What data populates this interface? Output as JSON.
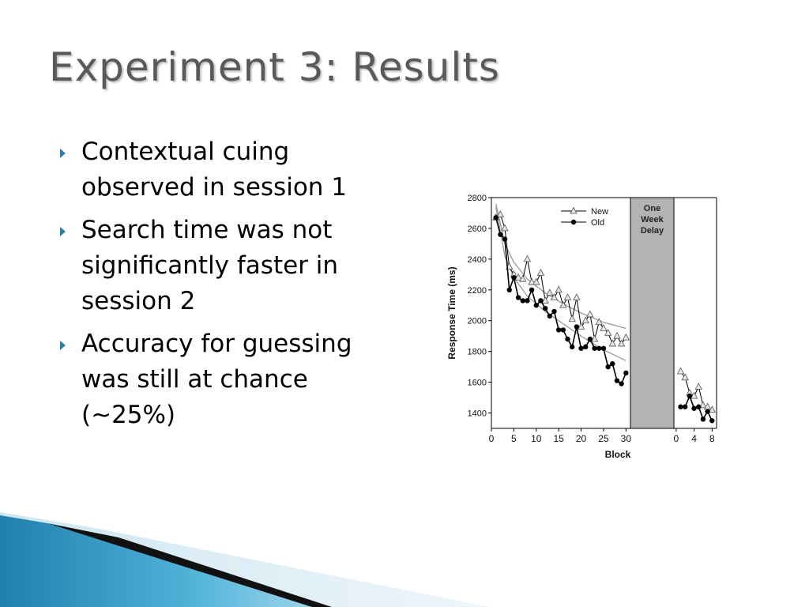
{
  "slide": {
    "title": "Experiment 3: Results",
    "bullets": [
      "Contextual cuing observed in session 1",
      "Search time was not significantly faster in session 2",
      "Accuracy for guessing was still at chance (~25%)"
    ],
    "colors": {
      "title": "#595959",
      "bullet_arrow": "#2e7fa8",
      "decor_blue": "#2a8bb5"
    }
  },
  "chart_data": {
    "type": "line",
    "xlabel": "Block",
    "ylabel": "Response Time (ms)",
    "ylim": [
      1300,
      2800
    ],
    "yticks": [
      1400,
      1600,
      1800,
      2000,
      2200,
      2400,
      2600,
      2800
    ],
    "delay_label": [
      "One",
      "Week",
      "Delay"
    ],
    "legend_position": "top-right",
    "panels": [
      {
        "xlim": [
          0,
          31
        ],
        "xticks": [
          0,
          5,
          10,
          15,
          20,
          25,
          30
        ],
        "series": [
          {
            "name": "New",
            "marker": "triangle",
            "x": [
              1,
              2,
              3,
              4,
              5,
              6,
              7,
              8,
              9,
              10,
              11,
              12,
              13,
              14,
              15,
              16,
              17,
              18,
              19,
              20,
              21,
              22,
              23,
              24,
              25,
              26,
              27,
              28,
              29,
              30
            ],
            "y": [
              2670,
              2690,
              2600,
              2350,
              2300,
              2280,
              2270,
              2400,
              2250,
              2250,
              2310,
              2130,
              2180,
              2150,
              2200,
              2100,
              2150,
              2010,
              2150,
              1960,
              2000,
              2040,
              1880,
              1990,
              1950,
              1920,
              1850,
              1900,
              1850,
              1890
            ]
          },
          {
            "name": "Old",
            "marker": "circle",
            "x": [
              1,
              2,
              3,
              4,
              5,
              6,
              7,
              8,
              9,
              10,
              11,
              12,
              13,
              14,
              15,
              16,
              17,
              18,
              19,
              20,
              21,
              22,
              23,
              24,
              25,
              26,
              27,
              28,
              29,
              30
            ],
            "y": [
              2670,
              2560,
              2530,
              2200,
              2280,
              2150,
              2130,
              2130,
              2200,
              2100,
              2130,
              2080,
              2030,
              2060,
              1940,
              1940,
              1880,
              1830,
              1960,
              1820,
              1830,
              1880,
              1820,
              1820,
              1820,
              1700,
              1720,
              1610,
              1590,
              1660
            ]
          }
        ],
        "fits": [
          {
            "series": "New",
            "x": [
              1,
              3,
              5,
              8,
              12,
              16,
              20,
              25,
              30
            ],
            "y": [
              2760,
              2500,
              2380,
              2270,
              2180,
              2110,
              2050,
              1990,
              1950
            ]
          },
          {
            "series": "Old",
            "x": [
              1,
              3,
              5,
              8,
              12,
              16,
              20,
              25,
              30
            ],
            "y": [
              2740,
              2420,
              2280,
              2160,
              2060,
              1980,
              1900,
              1810,
              1740
            ]
          }
        ]
      },
      {
        "xlim": [
          -0.5,
          9
        ],
        "xticks": [
          0,
          4,
          8
        ],
        "series": [
          {
            "name": "New",
            "marker": "triangle",
            "x": [
              1,
              2,
              3,
              4,
              5,
              6,
              7,
              8
            ],
            "y": [
              1670,
              1630,
              1530,
              1510,
              1570,
              1450,
              1440,
              1420
            ]
          },
          {
            "name": "Old",
            "marker": "circle",
            "x": [
              1,
              2,
              3,
              4,
              5,
              6,
              7,
              8
            ],
            "y": [
              1440,
              1440,
              1510,
              1430,
              1440,
              1360,
              1410,
              1350
            ]
          }
        ]
      }
    ]
  }
}
